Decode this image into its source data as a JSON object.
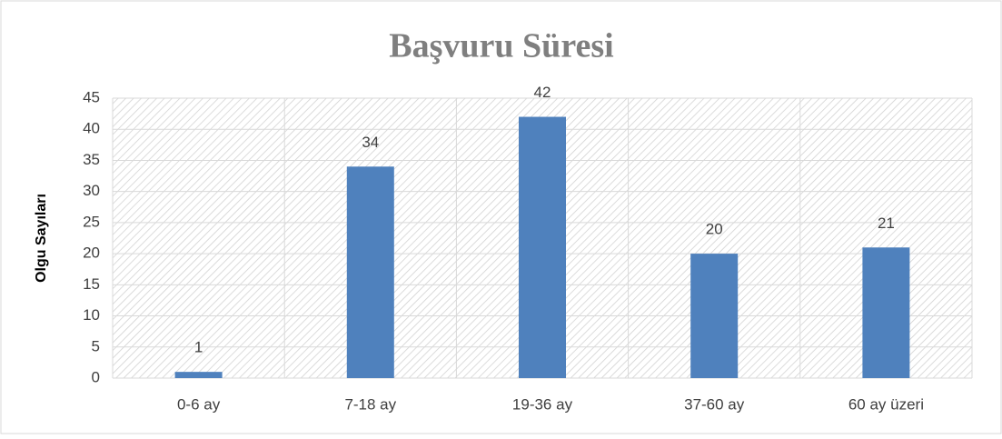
{
  "chart_data": {
    "type": "bar",
    "title": "Başvuru Süresi",
    "y_label": "Olgu Sayıları",
    "categories": [
      "0-6 ay",
      "7-18 ay",
      "19-36 ay",
      "37-60 ay",
      "60 ay üzeri"
    ],
    "values": [
      1,
      34,
      42,
      20,
      21
    ],
    "color": "#4f81bd",
    "ylim": [
      0,
      45
    ],
    "yticks": [
      0,
      5,
      10,
      15,
      20,
      25,
      30,
      35,
      40,
      45
    ],
    "grid": true
  }
}
